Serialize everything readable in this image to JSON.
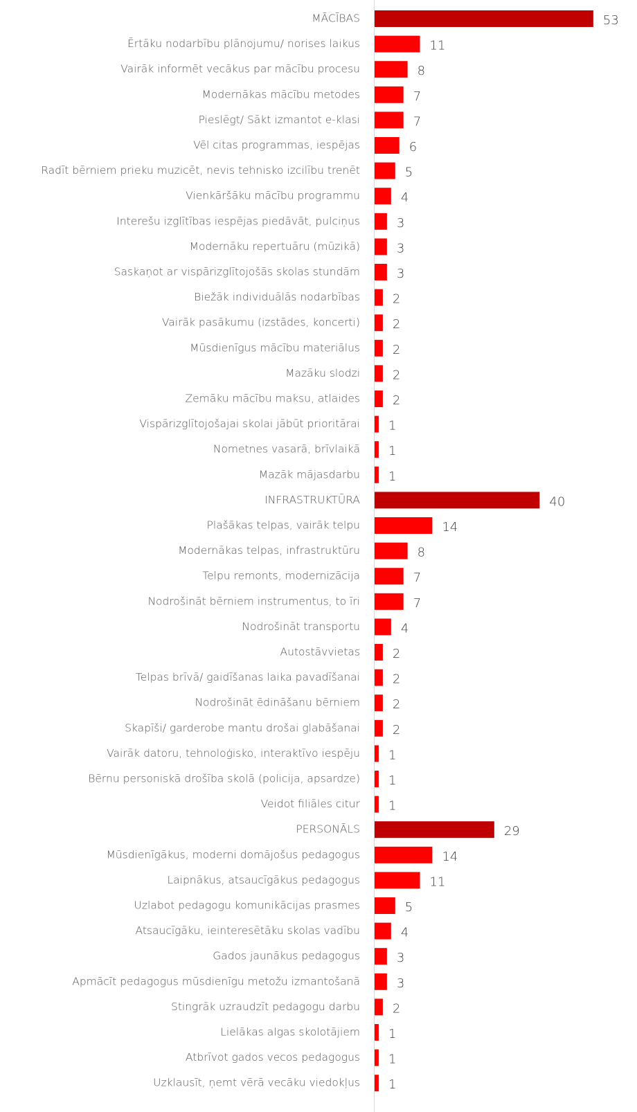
{
  "chart_data": {
    "type": "bar",
    "orientation": "horizontal",
    "categories": [
      "MĀCĪBAS",
      "Ērtāku nodarbību plānojumu/ norises laikus",
      "Vairāk informēt vecākus par mācību procesu",
      "Modernākas mācību metodes",
      "Pieslēgt/ Sākt izmantot e-klasi",
      "Vēl citas programmas, iespējas",
      "Radīt bērniem prieku muzicēt, nevis tehnisko izcilību trenēt",
      "Vienkāršāku mācību programmu",
      "Interešu izglītības iespējas piedāvāt, pulciņus",
      "Modernāku repertuāru (mūzikā)",
      "Saskaņot ar vispārizglītojošās skolas stundām",
      "Biežāk individuālās nodarbības",
      "Vairāk pasākumu (izstādes, koncerti)",
      "Mūsdienīgus mācību materiālus",
      "Mazāku slodzi",
      "Zemāku mācību maksu, atlaides",
      "Vispārizglītojošajai skolai jābūt prioritārai",
      "Nometnes vasarā, brīvlaikā",
      "Mazāk mājasdarbu",
      "INFRASTRUKTŪRA",
      "Plašākas telpas, vairāk telpu",
      "Modernākas telpas, infrastruktūru",
      "Telpu remonts, modernizācija",
      "Nodrošināt bērniem instrumentus, to īri",
      "Nodrošināt transportu",
      "Autostāvvietas",
      "Telpas brīvā/ gaidīšanas laika pavadīšanai",
      "Nodrošināt ēdināšanu bērniem",
      "Skapīši/ garderobe mantu drošai glabāšanai",
      "Vairāk datoru, tehnoloģisko, interaktīvo iespēju",
      "Bērnu personiskā drošība skolā (policija, apsardze)",
      "Veidot filiāles citur",
      "PERSONĀLS",
      "Mūsdienīgākus, moderni domājošus pedagogus",
      "Laipnākus, atsaucīgākus pedagogus",
      "Uzlabot pedagogu komunikācijas prasmes",
      "Atsaucīgāku, ieinteresētāku skolas vadību",
      "Gados jaunākus pedagogus",
      "Apmācīt pedagogus mūsdienīgu metožu izmantošanā",
      "Stingrāk uzraudzīt pedagogu darbu",
      "Lielākas algas skolotājiem",
      "Atbrīvot gados vecos pedagogus",
      "Uzklausīt, ņemt vērā vecāku viedokļus"
    ],
    "values": [
      53,
      11,
      8,
      7,
      7,
      6,
      5,
      4,
      3,
      3,
      3,
      2,
      2,
      2,
      2,
      2,
      1,
      1,
      1,
      40,
      14,
      8,
      7,
      7,
      4,
      2,
      2,
      2,
      2,
      1,
      1,
      1,
      29,
      14,
      11,
      5,
      4,
      3,
      3,
      2,
      1,
      1,
      1
    ],
    "colors": [
      "#c00000",
      "#ff0000",
      "#ff0000",
      "#ff0000",
      "#ff0000",
      "#ff0000",
      "#ff0000",
      "#ff0000",
      "#ff0000",
      "#ff0000",
      "#ff0000",
      "#ff0000",
      "#ff0000",
      "#ff0000",
      "#ff0000",
      "#ff0000",
      "#ff0000",
      "#ff0000",
      "#ff0000",
      "#c00000",
      "#ff0000",
      "#ff0000",
      "#ff0000",
      "#ff0000",
      "#ff0000",
      "#ff0000",
      "#ff0000",
      "#ff0000",
      "#ff0000",
      "#ff0000",
      "#ff0000",
      "#ff0000",
      "#c00000",
      "#ff0000",
      "#ff0000",
      "#ff0000",
      "#ff0000",
      "#ff0000",
      "#ff0000",
      "#ff0000",
      "#ff0000",
      "#ff0000",
      "#ff0000"
    ]
  }
}
